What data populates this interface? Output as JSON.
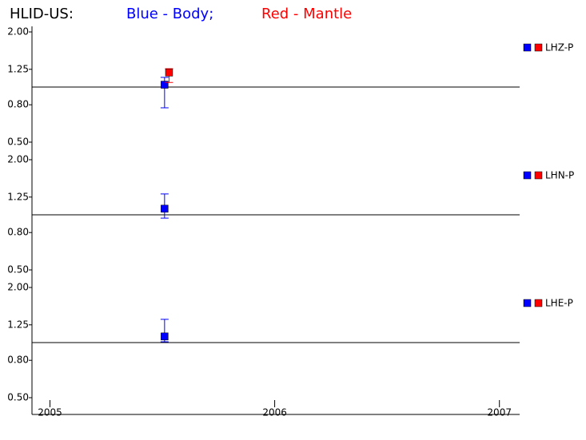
{
  "title": {
    "station": "HLID-US:",
    "blue": "Blue - Body;",
    "red": "Red - Mantle"
  },
  "chart_data": [
    {
      "type": "scatter",
      "label": "LHZ-P",
      "log_y": true,
      "refline": 1,
      "ylim": [
        0.5,
        2.0
      ],
      "yticks": [
        {
          "value": 0.5,
          "label": "0.50"
        },
        {
          "value": 0.8,
          "label": "0.80"
        },
        {
          "value": 1.25,
          "label": "1.25"
        },
        {
          "value": 2.0,
          "label": "2.00"
        }
      ],
      "xlim": [
        2004.92,
        2007.09
      ],
      "series": [
        {
          "color": "#0000ff",
          "x": [
            2005.51
          ],
          "values": [
            1.03
          ],
          "low": [
            0.77
          ],
          "high": [
            1.13
          ]
        },
        {
          "color": "#ff0000",
          "x": [
            2005.53
          ],
          "values": [
            1.2
          ],
          "low": [
            1.06
          ],
          "high": [
            1.26
          ]
        }
      ]
    },
    {
      "type": "scatter",
      "label": "LHN-P",
      "log_y": true,
      "refline": 1,
      "ylim": [
        0.5,
        2.0
      ],
      "yticks": [
        {
          "value": 0.5,
          "label": "0.50"
        },
        {
          "value": 0.8,
          "label": "0.80"
        },
        {
          "value": 1.25,
          "label": "1.25"
        },
        {
          "value": 2.0,
          "label": "2.00"
        }
      ],
      "xlim": [
        2004.92,
        2007.09
      ],
      "series": [
        {
          "color": "#0000ff",
          "x": [
            2005.51
          ],
          "values": [
            1.08
          ],
          "low": [
            0.96
          ],
          "high": [
            1.3
          ]
        },
        {
          "color": "#ff0000",
          "x": [
            2005.53
          ],
          "values": [
            null
          ],
          "low": [
            null
          ],
          "high": [
            null
          ]
        }
      ]
    },
    {
      "type": "scatter",
      "label": "LHE-P",
      "log_y": true,
      "refline": 1,
      "ylim": [
        0.5,
        2.0
      ],
      "yticks": [
        {
          "value": 0.5,
          "label": "0.50"
        },
        {
          "value": 0.8,
          "label": "0.80"
        },
        {
          "value": 1.25,
          "label": "1.25"
        },
        {
          "value": 2.0,
          "label": "2.00"
        }
      ],
      "xlim": [
        2004.92,
        2007.09
      ],
      "xticks": [
        2005,
        2006,
        2007
      ],
      "series": [
        {
          "color": "#0000ff",
          "x": [
            2005.51
          ],
          "values": [
            1.08
          ],
          "low": [
            1.01
          ],
          "high": [
            1.34
          ]
        },
        {
          "color": "#ff0000",
          "x": [
            2005.53
          ],
          "values": [
            null
          ],
          "low": [
            null
          ],
          "high": [
            null
          ]
        }
      ]
    }
  ]
}
